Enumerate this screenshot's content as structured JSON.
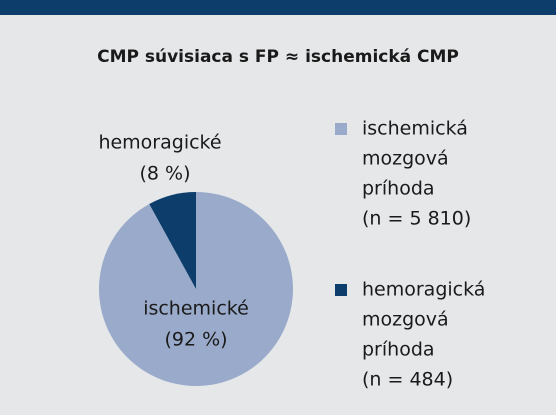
{
  "chart_data": {
    "type": "pie",
    "title": "CMP súvisiaca s FP ≈ ischemická CMP",
    "categories": [
      "ischemické",
      "hemoragické"
    ],
    "values": [
      92,
      8
    ],
    "value_labels": [
      "(92 %)",
      "(8 %)"
    ],
    "colors": [
      "#9aaacb",
      "#0c3d6b"
    ],
    "legend_labels": [
      [
        "ischemická",
        "mozgová",
        "príhoda",
        "(n = 5 810)"
      ],
      [
        "hemoragická",
        "mozgová",
        "príhoda",
        "(n = 484)"
      ]
    ]
  }
}
